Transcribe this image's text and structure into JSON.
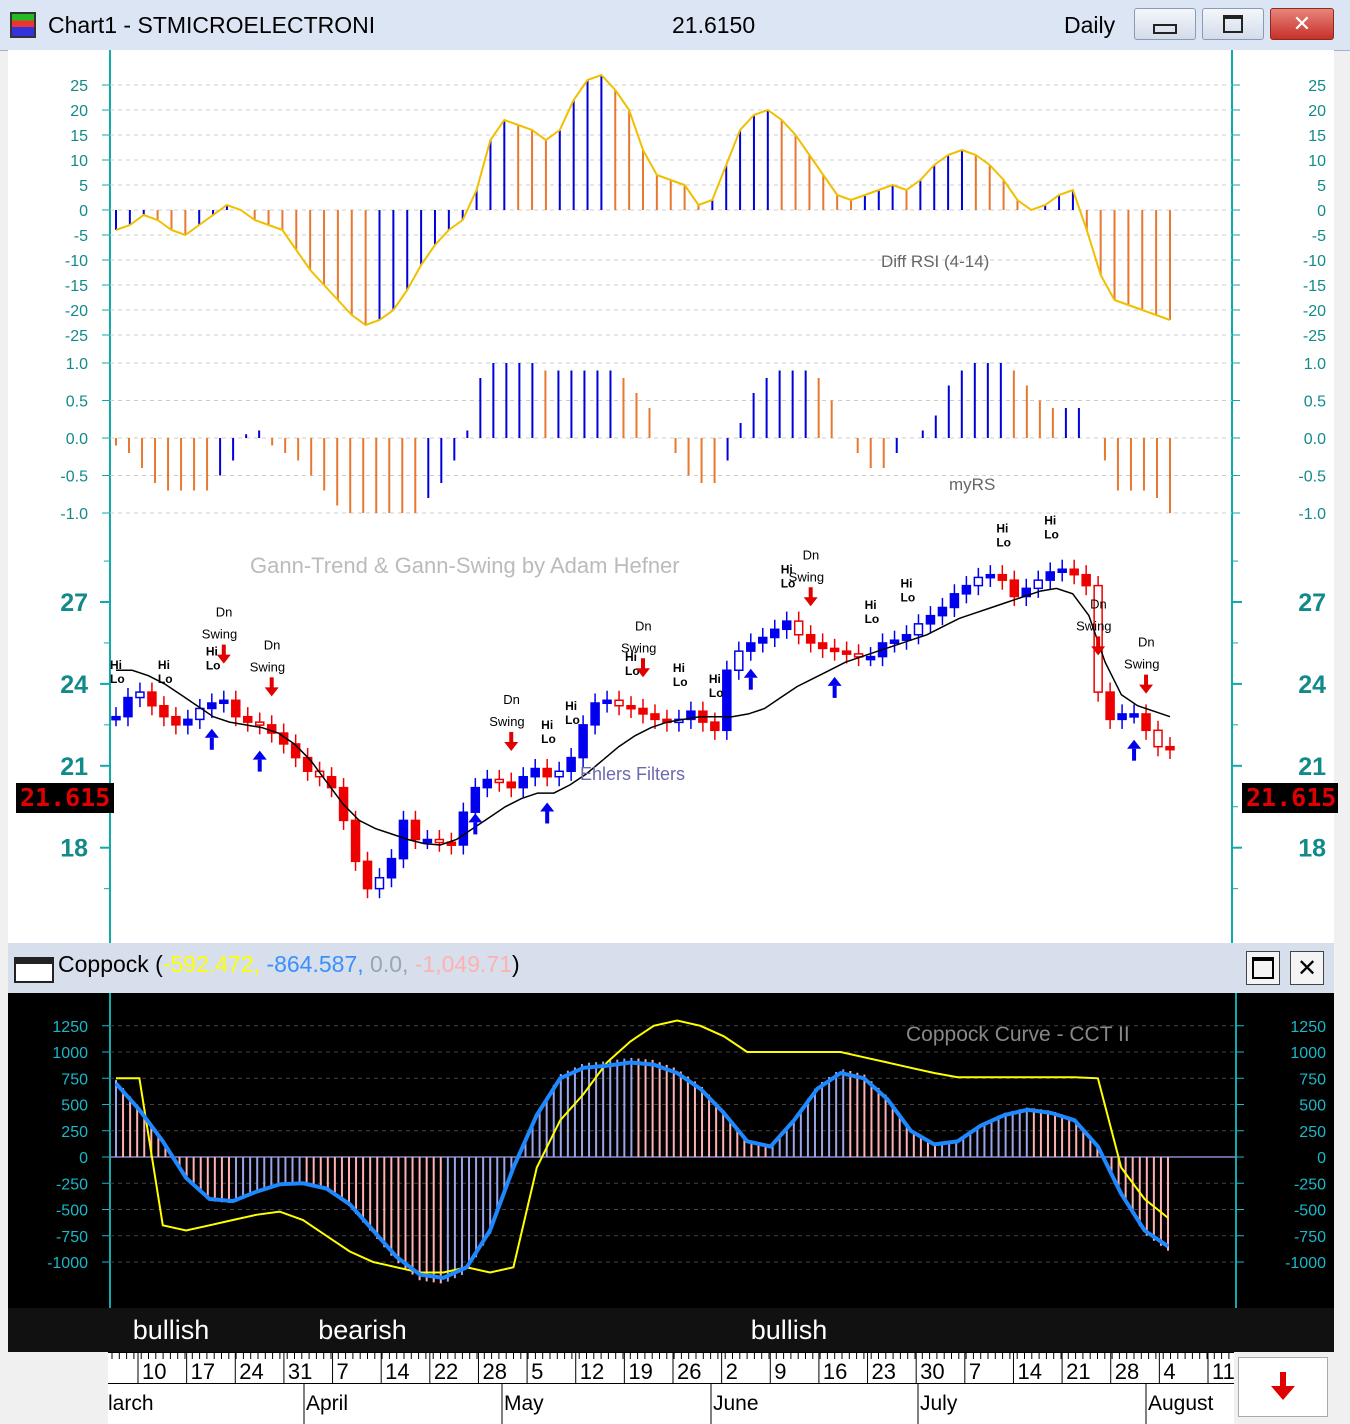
{
  "window": {
    "title": "Chart1 - STMICROELECTRONI",
    "price": "21.6150",
    "period": "Daily",
    "minimize_icon": "minimize-icon",
    "restore_icon": "restore-icon",
    "close_icon": "close-icon"
  },
  "diff_rsi": {
    "label": "Diff RSI (4-14)",
    "ticks": [
      "25",
      "20",
      "15",
      "10",
      "5",
      "0",
      "-5",
      "-10",
      "-15",
      "-20",
      "-25"
    ],
    "values": [
      -4,
      -3,
      -1,
      -2,
      -4,
      -5,
      -3,
      -1,
      1,
      0,
      -2,
      -3,
      -4,
      -8,
      -12,
      -15,
      -18,
      -21,
      -23,
      -22,
      -20,
      -16,
      -11,
      -7,
      -4,
      -2,
      4,
      14,
      18,
      17,
      16,
      14,
      16,
      22,
      26,
      27,
      24,
      20,
      12,
      7,
      6,
      5,
      1,
      2,
      9,
      16,
      19,
      20,
      18,
      15,
      11,
      7,
      3,
      2,
      3,
      4,
      5,
      4,
      6,
      9,
      11,
      12,
      11,
      9,
      6,
      2,
      0,
      1,
      3,
      4,
      -4,
      -13,
      -18,
      -19,
      -20,
      -21,
      -22
    ],
    "colors": {
      "up": "#0000dd",
      "down": "#e87830",
      "line": "#f0c000"
    }
  },
  "myrs": {
    "label": "myRS",
    "ticks": [
      "1.0",
      "0.5",
      "0.0",
      "-0.5",
      "-1.0"
    ],
    "values": [
      -0.1,
      -0.2,
      -0.4,
      -0.6,
      -0.7,
      -0.7,
      -0.7,
      -0.7,
      -0.5,
      -0.3,
      0.05,
      0.1,
      -0.1,
      -0.2,
      -0.3,
      -0.5,
      -0.7,
      -0.9,
      -1.0,
      -1.0,
      -1.0,
      -1.0,
      -1.0,
      -1.0,
      -0.8,
      -0.6,
      -0.3,
      0.1,
      0.8,
      1.0,
      1.0,
      1.0,
      1.0,
      0.9,
      0.9,
      0.9,
      0.9,
      0.9,
      0.9,
      0.8,
      0.6,
      0.4,
      0.0,
      -0.2,
      -0.5,
      -0.6,
      -0.6,
      -0.3,
      0.2,
      0.6,
      0.8,
      0.9,
      0.9,
      0.9,
      0.8,
      0.5,
      0.0,
      -0.2,
      -0.4,
      -0.4,
      -0.2,
      0.0,
      0.1,
      0.3,
      0.7,
      0.9,
      1.0,
      1.0,
      1.0,
      0.9,
      0.7,
      0.5,
      0.4,
      0.4,
      0.4,
      0.0,
      -0.3,
      -0.7,
      -0.7,
      -0.7,
      -0.8,
      -1.0
    ],
    "colors": {
      "up": "#0000dd",
      "down": "#e87830"
    }
  },
  "price": {
    "title": "Gann-Trend & Gann-Swing by Adam Hefner",
    "filter_label": "Ehlers Filters",
    "ticks": [
      "27",
      "24",
      "21",
      "18"
    ],
    "last_price": "21.615",
    "hi_label": "Hi",
    "lo_label": "Lo",
    "dn_label": "Dn",
    "swing_label": "Swing",
    "closes": [
      22.8,
      23.5,
      23.7,
      23.2,
      22.8,
      22.5,
      22.7,
      23.1,
      23.3,
      23.4,
      22.8,
      22.6,
      22.5,
      22.2,
      21.8,
      21.3,
      20.8,
      20.6,
      20.2,
      19.0,
      17.5,
      16.5,
      16.9,
      17.6,
      19.0,
      18.3,
      18.3,
      18.2,
      18.1,
      19.3,
      20.2,
      20.5,
      20.4,
      20.2,
      20.6,
      20.9,
      20.6,
      20.8,
      21.3,
      22.5,
      23.3,
      23.4,
      23.2,
      23.1,
      22.9,
      22.7,
      22.6,
      22.7,
      23.0,
      22.6,
      22.3,
      24.5,
      25.2,
      25.5,
      25.7,
      26.0,
      26.3,
      25.8,
      25.5,
      25.3,
      25.2,
      25.1,
      25.0,
      25.0,
      25.5,
      25.6,
      25.8,
      26.2,
      26.5,
      26.8,
      27.3,
      27.6,
      27.9,
      28.0,
      27.8,
      27.2,
      27.5,
      27.8,
      28.1,
      28.2,
      28.0,
      27.6,
      23.7,
      22.7,
      22.9,
      22.9,
      22.3,
      21.7,
      21.6
    ],
    "trend": [
      24.5,
      24.5,
      24.3,
      24.0,
      23.6,
      23.2,
      22.8,
      22.6,
      22.5,
      22.4,
      22.2,
      21.8,
      21.2,
      20.4,
      19.6,
      19.0,
      18.7,
      18.5,
      18.3,
      18.15,
      18.1,
      18.3,
      18.7,
      19.1,
      19.5,
      19.8,
      20.0,
      20.0,
      20.3,
      20.7,
      21.2,
      21.7,
      22.1,
      22.4,
      22.6,
      22.7,
      22.8,
      22.8,
      22.8,
      22.9,
      23.1,
      23.5,
      23.9,
      24.2,
      24.5,
      24.8,
      25.0,
      25.2,
      25.4,
      25.6,
      25.8,
      26.1,
      26.4,
      26.6,
      26.8,
      27.0,
      27.2,
      27.4,
      27.5,
      27.3,
      26.5,
      24.8,
      23.6,
      23.2,
      23.0,
      22.8
    ]
  },
  "coppock": {
    "title": "Coppock",
    "params": [
      "-592.472,",
      "-864.587,",
      "0.0,",
      "-1,049.71"
    ],
    "param_colors": [
      "#ffff00",
      "#3a8fff",
      "#9aa4b4",
      "#ffb0b0"
    ],
    "label": "Coppock Curve - CCT II",
    "ticks": [
      "1250",
      "1000",
      "750",
      "500",
      "250",
      "0",
      "-250",
      "-500",
      "-750",
      "-1000"
    ],
    "blue_line": [
      700,
      450,
      150,
      -200,
      -400,
      -420,
      -330,
      -260,
      -250,
      -300,
      -450,
      -700,
      -950,
      -1120,
      -1150,
      -1050,
      -700,
      -100,
      400,
      750,
      850,
      870,
      900,
      880,
      800,
      650,
      420,
      150,
      100,
      350,
      650,
      800,
      750,
      550,
      250,
      120,
      150,
      300,
      400,
      450,
      420,
      350,
      100,
      -350,
      -700,
      -850
    ],
    "yellow_line": [
      750,
      750,
      -650,
      -700,
      -650,
      -600,
      -550,
      -520,
      -600,
      -750,
      -900,
      -1000,
      -1050,
      -1100,
      -1100,
      -1050,
      -1100,
      -1050,
      -100,
      350,
      600,
      900,
      1100,
      1250,
      1300,
      1250,
      1150,
      1000,
      1000,
      1000,
      1000,
      1000,
      950,
      900,
      850,
      800,
      760,
      760,
      760,
      760,
      760,
      760,
      750,
      -100,
      -400,
      -580
    ],
    "bar_colors": {
      "neg": "#ffb0b0",
      "pos": "#9aa4e8"
    }
  },
  "regime": [
    {
      "label": "bullish",
      "color": "#0000ff"
    },
    {
      "label": "bearish",
      "color": "#ff0000"
    },
    {
      "label": "bullish",
      "color": "#0000ff"
    },
    {
      "label": "",
      "color": "#ff0000"
    }
  ],
  "dates": {
    "days": [
      "10",
      "17",
      "24",
      "31",
      "7",
      "14",
      "22",
      "28",
      "5",
      "12",
      "19",
      "26",
      "2",
      "9",
      "16",
      "23",
      "30",
      "7",
      "14",
      "21",
      "28",
      "4",
      "11"
    ],
    "months": [
      "larch",
      "April",
      "May",
      "June",
      "July",
      "August"
    ]
  },
  "corner_button": {
    "icon": "down-arrow-icon",
    "color": "#e00000"
  }
}
